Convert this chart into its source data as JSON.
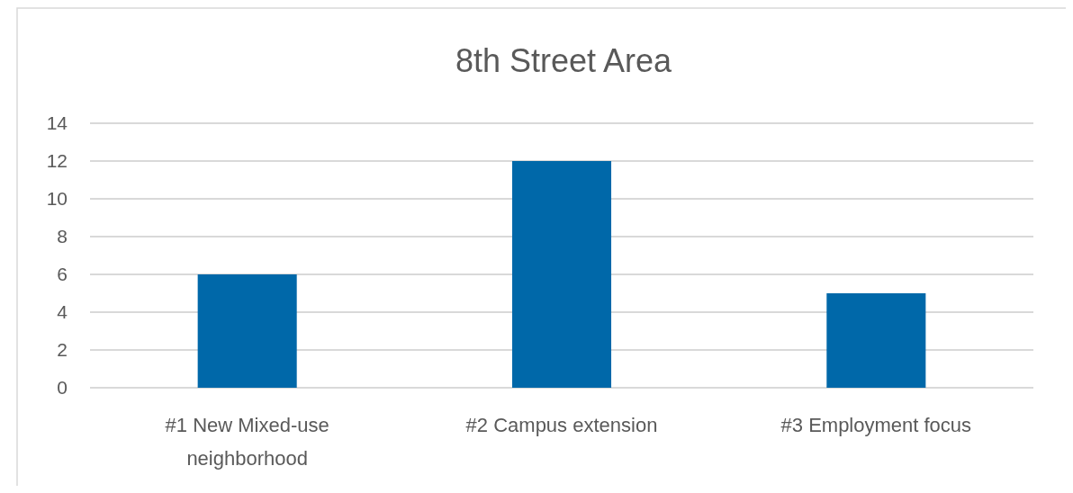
{
  "chart_data": {
    "type": "bar",
    "title": "8th Street Area",
    "categories": [
      "#1 New Mixed-use neighborhood",
      "#2 Campus extension",
      "#3 Employment focus"
    ],
    "values": [
      6,
      12,
      5
    ],
    "color": "#0068a9",
    "ylim": [
      0,
      14
    ],
    "yticks": [
      0,
      2,
      4,
      6,
      8,
      10,
      12,
      14
    ],
    "grid": "y"
  }
}
